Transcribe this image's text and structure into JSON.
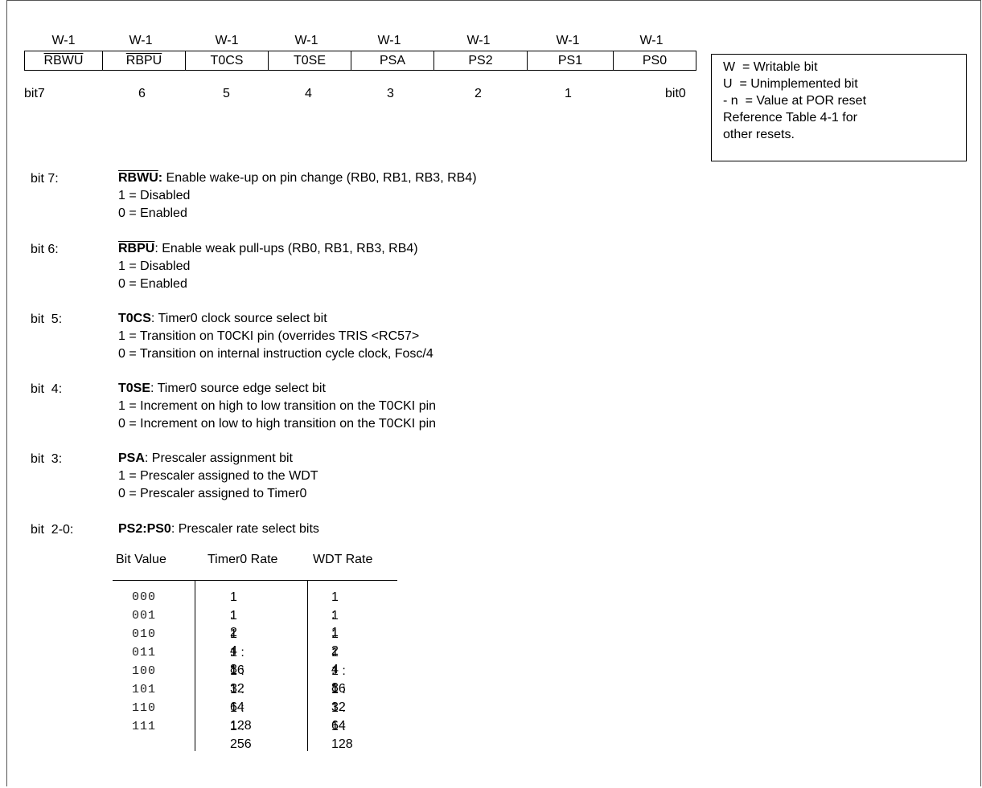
{
  "register": {
    "attrs": [
      "W-1",
      "W-1",
      "W-1",
      "W-1",
      "W-1",
      "W-1",
      "W-1",
      "W-1"
    ],
    "bits": [
      {
        "name": "RBWU",
        "overline": true
      },
      {
        "name": "RBPU",
        "overline": true
      },
      {
        "name": "T0CS",
        "overline": false
      },
      {
        "name": "T0SE",
        "overline": false
      },
      {
        "name": "PSA",
        "overline": false
      },
      {
        "name": "PS2",
        "overline": false
      },
      {
        "name": "PS1",
        "overline": false
      },
      {
        "name": "PS0",
        "overline": false
      }
    ],
    "bit_numbers": [
      "bit7",
      "6",
      "5",
      "4",
      "3",
      "2",
      "1",
      "bit0"
    ]
  },
  "legend": {
    "lines": [
      "W  = Writable bit",
      "U  = Unimplemented bit",
      "- n  = Value at POR reset",
      "Reference Table 4-1 for",
      "other resets."
    ]
  },
  "descriptions": [
    {
      "label": "bit 7:",
      "name": "RBWU",
      "name_overline": true,
      "sep": ":",
      "sep_bold": true,
      "text": " Enable wake-up on pin change (RB0, RB1, RB3, RB4)",
      "lines": [
        "1 = Disabled",
        "0 = Enabled"
      ]
    },
    {
      "label": "bit 6:",
      "name": "RBPU",
      "name_overline": true,
      "sep": ":",
      "sep_bold": false,
      "text": " Enable weak pull-ups (RB0, RB1, RB3, RB4)",
      "lines": [
        "1 = Disabled",
        "0 = Enabled"
      ]
    },
    {
      "label": "bit  5:",
      "name": "T0CS",
      "name_overline": false,
      "sep": ":",
      "sep_bold": false,
      "text": " Timer0 clock source select bit",
      "lines": [
        "1 = Transition on T0CKI pin (overrides TRIS <RC57>",
        "0 = Transition on internal instruction cycle clock, Fosc/4"
      ]
    },
    {
      "label": "bit  4:",
      "name": "T0SE",
      "name_overline": false,
      "sep": ":",
      "sep_bold": false,
      "text": " Timer0 source edge select bit",
      "lines": [
        "1 = Increment on high to low transition on the T0CKI pin",
        "0 = Increment on low to high transition on the T0CKI pin"
      ]
    },
    {
      "label": "bit  3:",
      "name": "PSA",
      "name_overline": false,
      "sep": ":",
      "sep_bold": false,
      "text": " Prescaler assignment bit",
      "lines": [
        "1 = Prescaler assigned to the WDT",
        "0 = Prescaler assigned to Timer0"
      ]
    },
    {
      "label": "bit  2-0:",
      "name": "PS2:PS0",
      "name_overline": false,
      "sep": ":",
      "sep_bold": false,
      "text": " Prescaler rate select bits",
      "lines": []
    }
  ],
  "prescaler_table": {
    "headers": [
      "Bit Value",
      "Timer0 Rate",
      "WDT Rate"
    ],
    "rows": [
      [
        "000",
        "1 : 2",
        "1 : 1"
      ],
      [
        "001",
        "1 : 4",
        "1 : 2"
      ],
      [
        "010",
        "1 : 8",
        "1 : 4"
      ],
      [
        "011",
        "1 : 16",
        "1 : 8"
      ],
      [
        "100",
        "1 : 32",
        "1 : 16"
      ],
      [
        "101",
        "1 : 64",
        "1 : 32"
      ],
      [
        "110",
        "1 : 128",
        "1 : 64"
      ],
      [
        "111",
        "1 : 256",
        "1 : 128"
      ]
    ]
  }
}
